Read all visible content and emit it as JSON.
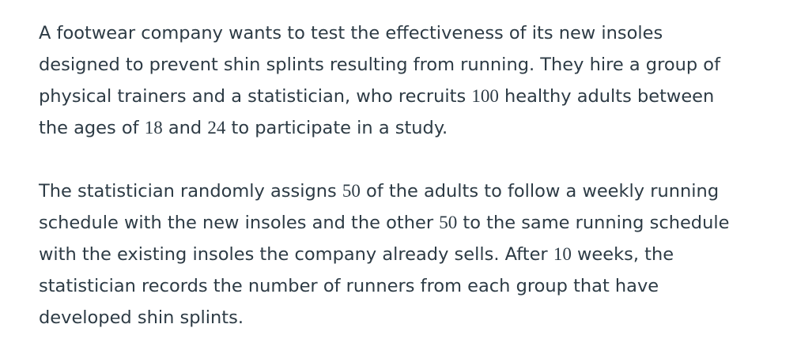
{
  "paragraphs": [
    {
      "lines": [
        [
          {
            "t": "A footwear company wants to test the effectiveness of its new insoles"
          }
        ],
        [
          {
            "t": "designed to prevent shin splints resulting from running. They hire a group of"
          }
        ],
        [
          {
            "t": "physical trainers and a statistician, who recruits "
          },
          {
            "t": "100",
            "num": true
          },
          {
            "t": " healthy adults between"
          }
        ],
        [
          {
            "t": "the ages of "
          },
          {
            "t": "18",
            "num": true
          },
          {
            "t": " and "
          },
          {
            "t": "24",
            "num": true
          },
          {
            "t": " to participate in a study."
          }
        ]
      ]
    },
    {
      "lines": [
        [
          {
            "t": "The statistician randomly assigns "
          },
          {
            "t": "50",
            "num": true
          },
          {
            "t": " of the adults to follow a weekly running"
          }
        ],
        [
          {
            "t": "schedule with the new insoles and the other "
          },
          {
            "t": "50",
            "num": true
          },
          {
            "t": " to the same running schedule"
          }
        ],
        [
          {
            "t": "with the existing insoles the company already sells. After "
          },
          {
            "t": "10",
            "num": true
          },
          {
            "t": " weeks, the"
          }
        ],
        [
          {
            "t": "statistician records the number of runners from each group that have"
          }
        ],
        [
          {
            "t": "developed shin splints."
          }
        ]
      ]
    }
  ]
}
